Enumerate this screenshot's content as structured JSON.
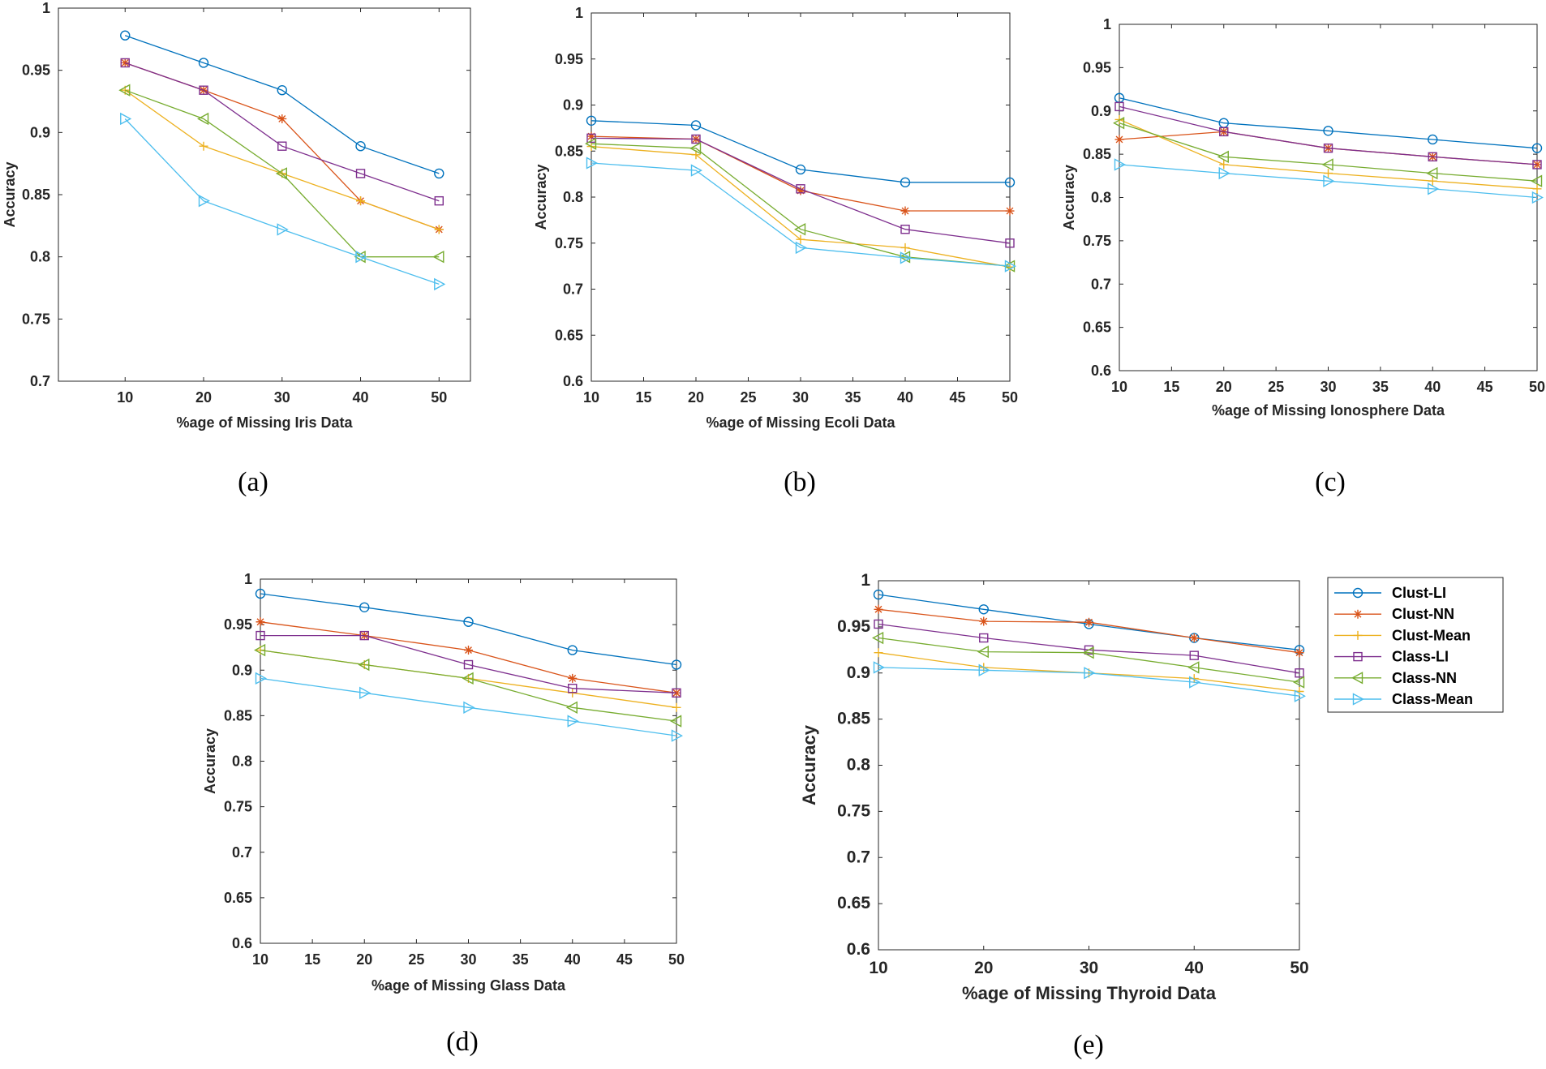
{
  "figure": {
    "series_names": [
      "Clust-LI",
      "Clust-NN",
      "Clust-Mean",
      "Class-LI",
      "Class-NN",
      "Class-Mean"
    ],
    "series_colors": [
      "#0072BD",
      "#D95319",
      "#EDB120",
      "#7E2F8E",
      "#77AC30",
      "#4DBEEE"
    ],
    "series_markers": [
      "circle",
      "asterisk",
      "plus",
      "square",
      "triangle-left",
      "triangle-right"
    ]
  },
  "chart_data": [
    {
      "type": "line",
      "panel_label": "(a)",
      "xlabel": "%age of Missing Iris Data",
      "ylabel": "Accuracy",
      "x": [
        10,
        20,
        30,
        40,
        50
      ],
      "xlim": [
        1.5,
        54
      ],
      "xticks": [
        10,
        20,
        30,
        40,
        50
      ],
      "ylim": [
        0.7,
        1
      ],
      "yticks": [
        0.7,
        0.75,
        0.8,
        0.85,
        0.9,
        0.95,
        1
      ],
      "ytick_labels": [
        "0.7",
        "0.75",
        "0.8",
        "0.85",
        "0.9",
        "0.95",
        "1"
      ],
      "series": [
        {
          "name": "Clust-LI",
          "values": [
            0.978,
            0.956,
            0.934,
            0.889,
            0.867
          ]
        },
        {
          "name": "Clust-NN",
          "values": [
            0.956,
            0.934,
            0.911,
            0.845,
            0.822
          ]
        },
        {
          "name": "Clust-Mean",
          "values": [
            0.934,
            0.889,
            0.867,
            0.845,
            0.822
          ]
        },
        {
          "name": "Class-LI",
          "values": [
            0.956,
            0.934,
            0.889,
            0.867,
            0.845
          ]
        },
        {
          "name": "Class-NN",
          "values": [
            0.934,
            0.911,
            0.867,
            0.8,
            0.8
          ]
        },
        {
          "name": "Class-Mean",
          "values": [
            0.911,
            0.845,
            0.822,
            0.8,
            0.778
          ]
        }
      ]
    },
    {
      "type": "line",
      "panel_label": "(b)",
      "xlabel": "%age of Missing Ecoli Data",
      "ylabel": "Accuracy",
      "x": [
        10,
        20,
        30,
        40,
        50
      ],
      "xlim": [
        10,
        50
      ],
      "xticks": [
        10,
        15,
        20,
        25,
        30,
        35,
        40,
        45,
        50
      ],
      "ylim": [
        0.6,
        1
      ],
      "yticks": [
        0.6,
        0.65,
        0.7,
        0.75,
        0.8,
        0.85,
        0.9,
        0.95,
        1
      ],
      "ytick_labels": [
        "0.6",
        "0.65",
        "0.7",
        "0.75",
        "0.8",
        "0.85",
        "0.9",
        "0.95",
        "1"
      ],
      "series": [
        {
          "name": "Clust-LI",
          "values": [
            0.883,
            0.878,
            0.83,
            0.816,
            0.816
          ]
        },
        {
          "name": "Clust-NN",
          "values": [
            0.866,
            0.863,
            0.807,
            0.785,
            0.785
          ]
        },
        {
          "name": "Clust-Mean",
          "values": [
            0.855,
            0.846,
            0.754,
            0.745,
            0.724
          ]
        },
        {
          "name": "Class-LI",
          "values": [
            0.864,
            0.863,
            0.809,
            0.765,
            0.75
          ]
        },
        {
          "name": "Class-NN",
          "values": [
            0.858,
            0.853,
            0.765,
            0.735,
            0.725
          ]
        },
        {
          "name": "Class-Mean",
          "values": [
            0.837,
            0.829,
            0.745,
            0.734,
            0.725
          ]
        }
      ]
    },
    {
      "type": "line",
      "panel_label": "(c)",
      "xlabel": "%age of Missing Ionosphere Data",
      "ylabel": "Accuracy",
      "x": [
        10,
        20,
        30,
        40,
        50
      ],
      "xlim": [
        10,
        50
      ],
      "xticks": [
        10,
        15,
        20,
        25,
        30,
        35,
        40,
        45,
        50
      ],
      "ylim": [
        0.6,
        1
      ],
      "yticks": [
        0.6,
        0.65,
        0.7,
        0.75,
        0.8,
        0.85,
        0.9,
        0.95,
        1
      ],
      "ytick_labels": [
        "0.6",
        "0.65",
        "0.7",
        "0.75",
        "0.8",
        "0.85",
        "0.9",
        "0.95",
        "1"
      ],
      "series": [
        {
          "name": "Clust-LI",
          "values": [
            0.915,
            0.886,
            0.877,
            0.867,
            0.857
          ]
        },
        {
          "name": "Clust-NN",
          "values": [
            0.867,
            0.876,
            0.857,
            0.847,
            0.838
          ]
        },
        {
          "name": "Clust-Mean",
          "values": [
            0.89,
            0.838,
            0.828,
            0.819,
            0.81
          ]
        },
        {
          "name": "Class-LI",
          "values": [
            0.905,
            0.876,
            0.857,
            0.847,
            0.838
          ]
        },
        {
          "name": "Class-NN",
          "values": [
            0.886,
            0.847,
            0.838,
            0.828,
            0.819
          ]
        },
        {
          "name": "Class-Mean",
          "values": [
            0.838,
            0.828,
            0.819,
            0.81,
            0.8
          ]
        }
      ]
    },
    {
      "type": "line",
      "panel_label": "(d)",
      "xlabel": "%age of Missing Glass Data",
      "ylabel": "Accuracy",
      "x": [
        10,
        20,
        30,
        40,
        50
      ],
      "xlim": [
        10,
        50
      ],
      "xticks": [
        10,
        15,
        20,
        25,
        30,
        35,
        40,
        45,
        50
      ],
      "ylim": [
        0.6,
        1
      ],
      "yticks": [
        0.6,
        0.65,
        0.7,
        0.75,
        0.8,
        0.85,
        0.9,
        0.95,
        1
      ],
      "ytick_labels": [
        "0.6",
        "0.65",
        "0.7",
        "0.75",
        "0.8",
        "0.85",
        "0.9",
        "0.95",
        "1"
      ],
      "series": [
        {
          "name": "Clust-LI",
          "values": [
            0.984,
            0.969,
            0.953,
            0.922,
            0.906
          ]
        },
        {
          "name": "Clust-NN",
          "values": [
            0.953,
            0.938,
            0.922,
            0.891,
            0.875
          ]
        },
        {
          "name": "Clust-Mean",
          "values": [
            0.922,
            0.906,
            0.891,
            0.875,
            0.859
          ]
        },
        {
          "name": "Class-LI",
          "values": [
            0.938,
            0.938,
            0.906,
            0.88,
            0.875
          ]
        },
        {
          "name": "Class-NN",
          "values": [
            0.922,
            0.906,
            0.891,
            0.859,
            0.844
          ]
        },
        {
          "name": "Class-Mean",
          "values": [
            0.891,
            0.875,
            0.859,
            0.844,
            0.828
          ]
        }
      ]
    },
    {
      "type": "line",
      "panel_label": "(e)",
      "xlabel": "%age of Missing Thyroid Data",
      "ylabel": "Accuracy",
      "x": [
        10,
        20,
        30,
        40,
        50
      ],
      "xlim": [
        10,
        50
      ],
      "xticks": [
        10,
        20,
        30,
        40,
        50
      ],
      "ylim": [
        0.6,
        1
      ],
      "yticks": [
        0.6,
        0.65,
        0.7,
        0.75,
        0.8,
        0.85,
        0.9,
        0.95,
        1
      ],
      "ytick_labels": [
        "0.6",
        "0.65",
        "0.7",
        "0.75",
        "0.8",
        "0.85",
        "0.9",
        "0.95",
        "1"
      ],
      "legend": "top-right",
      "series": [
        {
          "name": "Clust-LI",
          "values": [
            0.985,
            0.969,
            0.953,
            0.938,
            0.925
          ]
        },
        {
          "name": "Clust-NN",
          "values": [
            0.969,
            0.956,
            0.955,
            0.938,
            0.922
          ]
        },
        {
          "name": "Clust-Mean",
          "values": [
            0.922,
            0.906,
            0.9,
            0.894,
            0.88
          ]
        },
        {
          "name": "Class-LI",
          "values": [
            0.953,
            0.938,
            0.925,
            0.919,
            0.9
          ]
        },
        {
          "name": "Class-NN",
          "values": [
            0.938,
            0.923,
            0.922,
            0.906,
            0.89
          ]
        },
        {
          "name": "Class-Mean",
          "values": [
            0.906,
            0.903,
            0.9,
            0.89,
            0.875
          ]
        }
      ]
    }
  ]
}
